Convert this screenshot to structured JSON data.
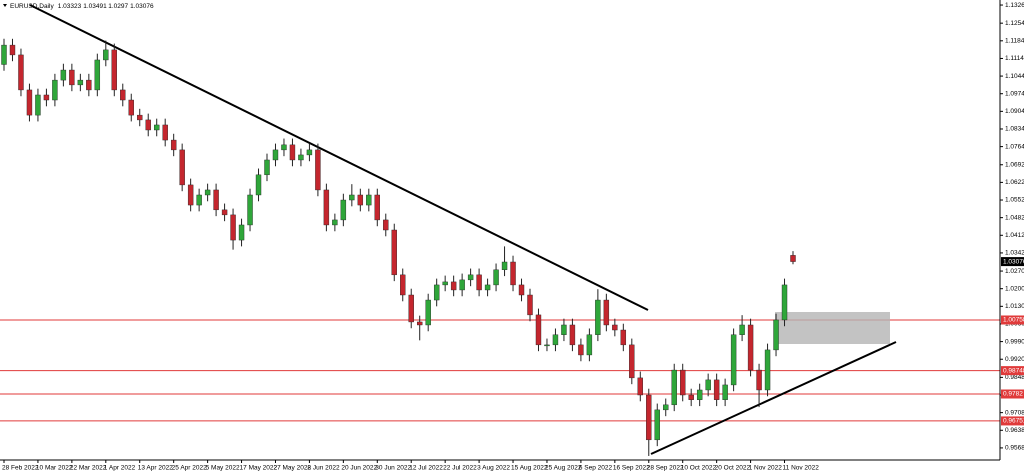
{
  "chart_data": {
    "type": "candlestick",
    "title": "EURUSD,Daily",
    "up_color": "#2fa63a",
    "down_color": "#c4262e",
    "wick_color": "#222222",
    "level_color": "#e03a3a",
    "ylim": [
      0.952,
      1.1346
    ],
    "yticks": [
      {
        "value": 1.1326,
        "label": "1.13260"
      },
      {
        "value": 1.1254,
        "label": "1.12540"
      },
      {
        "value": 1.1184,
        "label": "1.11840"
      },
      {
        "value": 1.1114,
        "label": "1.11140"
      },
      {
        "value": 1.1044,
        "label": "1.10440"
      },
      {
        "value": 1.0974,
        "label": "1.09740"
      },
      {
        "value": 1.0904,
        "label": "1.09040"
      },
      {
        "value": 1.0834,
        "label": "1.08340"
      },
      {
        "value": 1.0764,
        "label": "1.07640"
      },
      {
        "value": 1.0692,
        "label": "1.06920"
      },
      {
        "value": 1.0622,
        "label": "1.06220"
      },
      {
        "value": 1.0552,
        "label": "1.05520"
      },
      {
        "value": 1.0482,
        "label": "1.04820"
      },
      {
        "value": 1.0412,
        "label": "1.04120"
      },
      {
        "value": 1.0342,
        "label": "1.03420"
      },
      {
        "value": 1.027,
        "label": "1.02700"
      },
      {
        "value": 1.02,
        "label": "1.02000"
      },
      {
        "value": 1.013,
        "label": "1.01300"
      },
      {
        "value": 1.006,
        "label": "1.00600"
      },
      {
        "value": 0.999,
        "label": "0.99900"
      },
      {
        "value": 0.992,
        "label": "0.99200"
      },
      {
        "value": 0.9848,
        "label": "0.98480"
      },
      {
        "value": 0.9778,
        "label": "0.97780"
      },
      {
        "value": 0.9708,
        "label": "0.97080"
      },
      {
        "value": 0.9638,
        "label": "0.96380"
      },
      {
        "value": 0.9568,
        "label": "0.95680"
      }
    ],
    "levels": [
      {
        "value": 1.00758
      },
      {
        "value": 0.98748
      },
      {
        "value": 0.9782
      },
      {
        "value": 0.96751
      }
    ],
    "categories": [
      "28 Feb 2022",
      null,
      null,
      null,
      "10 Mar 2022",
      null,
      null,
      null,
      "22 Mar 2022",
      null,
      null,
      null,
      "1 Apr 2022",
      null,
      null,
      null,
      "13 Apr 2022",
      null,
      null,
      null,
      "25 Apr 2022",
      null,
      null,
      null,
      "5 May 2022",
      null,
      null,
      null,
      "17 May 2022",
      null,
      null,
      null,
      "27 May 2022",
      null,
      null,
      null,
      "8 Jun 2022",
      null,
      null,
      null,
      "20 Jun 2022",
      null,
      null,
      null,
      "30 Jun 2022",
      null,
      null,
      null,
      "12 Jul 2022",
      null,
      null,
      null,
      "22 Jul 2022",
      null,
      null,
      null,
      "3 Aug 2022",
      null,
      null,
      null,
      "15 Aug 2022",
      null,
      null,
      null,
      "25 Aug 2022",
      null,
      null,
      null,
      "6 Sep 2022",
      null,
      null,
      null,
      "16 Sep 2022",
      null,
      null,
      null,
      "28 Sep 2022",
      null,
      null,
      null,
      "10 Oct 2022",
      null,
      null,
      null,
      "20 Oct 2022",
      null,
      null,
      null,
      "1 Nov 2022",
      null,
      null,
      null,
      "11 Nov 2022",
      null
    ],
    "open": [
      1.109,
      1.1167,
      1.1128,
      1.0989,
      1.0889,
      1.0969,
      1.0949,
      1.1028,
      1.1068,
      1.1009,
      1.1028,
      1.0989,
      1.1108,
      1.1148,
      1.0989,
      1.0949,
      1.0889,
      1.087,
      1.083,
      1.085,
      1.079,
      1.0751,
      1.0612,
      1.0532,
      1.0572,
      1.0592,
      1.0513,
      1.0493,
      1.0393,
      1.0453,
      1.0572,
      1.0652,
      1.0711,
      1.0751,
      1.0771,
      1.0711,
      1.0731,
      1.0751,
      1.0592,
      1.0453,
      1.0473,
      1.0552,
      1.0572,
      1.0532,
      1.0572,
      1.0473,
      1.0433,
      1.0255,
      1.0175,
      1.0068,
      1.0056,
      1.0155,
      1.0215,
      1.0227,
      1.0195,
      1.0235,
      1.0255,
      1.0195,
      1.0215,
      1.0275,
      1.0306,
      1.0215,
      1.0175,
      1.0096,
      0.9977,
      0.9977,
      1.0017,
      1.0056,
      0.9977,
      0.9937,
      1.0017,
      1.0155,
      1.0056,
      1.0036,
      0.9977,
      0.9846,
      0.9778,
      0.96,
      0.9719,
      0.9739,
      0.9877,
      0.9778,
      0.9759,
      0.9798,
      0.9838,
      0.9759,
      0.9818,
      1.0017,
      1.0056,
      0.9877,
      0.9798,
      0.9957,
      1.0076,
      1.03323
    ],
    "high": [
      1.1192,
      1.1192,
      1.1153,
      1.1014,
      1.0994,
      1.0994,
      1.1053,
      1.1093,
      1.1093,
      1.1053,
      1.1053,
      1.1133,
      1.1185,
      1.1173,
      1.1014,
      1.0974,
      1.0914,
      1.0895,
      1.0875,
      1.0875,
      1.0815,
      1.0776,
      1.0637,
      1.0597,
      1.0617,
      1.0617,
      1.0538,
      1.0518,
      1.0478,
      1.0597,
      1.0677,
      1.0736,
      1.0776,
      1.0796,
      1.0796,
      1.0756,
      1.0776,
      1.0776,
      1.0617,
      1.0498,
      1.0577,
      1.0615,
      1.0597,
      1.0597,
      1.0597,
      1.0498,
      1.0458,
      1.028,
      1.02,
      1.0093,
      1.018,
      1.024,
      1.0252,
      1.0252,
      1.026,
      1.028,
      1.028,
      1.024,
      1.03,
      1.0368,
      1.0331,
      1.024,
      1.02,
      1.0121,
      1.0002,
      1.0042,
      1.0081,
      1.0081,
      1.0002,
      1.0042,
      1.0198,
      1.018,
      1.0081,
      1.0061,
      1.0002,
      0.9871,
      0.9803,
      0.9744,
      0.9764,
      0.9902,
      0.9902,
      0.9803,
      0.9823,
      0.9863,
      0.9863,
      0.9843,
      1.0042,
      1.0095,
      1.0081,
      0.9902,
      0.9982,
      1.0101,
      1.024,
      1.03491
    ],
    "low": [
      1.1065,
      1.1103,
      1.0964,
      1.0864,
      1.0864,
      1.0924,
      1.0924,
      1.1003,
      1.0984,
      1.0984,
      1.0964,
      1.0964,
      1.1083,
      1.0964,
      1.0924,
      1.0864,
      1.0845,
      1.0805,
      1.0805,
      1.0765,
      1.0726,
      1.0587,
      1.0507,
      1.0507,
      1.0547,
      1.0488,
      1.0468,
      1.0355,
      1.0368,
      1.0428,
      1.0547,
      1.0627,
      1.0686,
      1.0726,
      1.0686,
      1.0686,
      1.0706,
      1.0567,
      1.0428,
      1.0428,
      1.0448,
      1.0527,
      1.0507,
      1.0507,
      1.0448,
      1.0408,
      1.023,
      1.015,
      1.0043,
      0.9995,
      1.0031,
      1.013,
      1.019,
      1.017,
      1.017,
      1.021,
      1.017,
      1.017,
      1.019,
      1.025,
      1.019,
      1.015,
      1.0071,
      0.9952,
      0.9952,
      0.9952,
      0.9992,
      0.9952,
      0.9912,
      0.9912,
      0.9992,
      1.0031,
      1.0011,
      0.9952,
      0.9821,
      0.9753,
      0.9536,
      0.9575,
      0.9694,
      0.9714,
      0.9753,
      0.9734,
      0.9734,
      0.9773,
      0.9734,
      0.9734,
      0.9793,
      0.9992,
      0.9852,
      0.973,
      0.9773,
      0.9932,
      1.0051,
      1.0297
    ],
    "close": [
      1.1167,
      1.1128,
      1.0989,
      1.0889,
      1.0969,
      1.0949,
      1.1028,
      1.1068,
      1.1009,
      1.1028,
      1.0989,
      1.1108,
      1.1148,
      1.0989,
      1.0949,
      1.0889,
      1.087,
      1.083,
      1.085,
      1.079,
      1.0751,
      1.0612,
      1.0532,
      1.0572,
      1.0592,
      1.0513,
      1.0493,
      1.0393,
      1.0453,
      1.0572,
      1.0652,
      1.0711,
      1.0751,
      1.0771,
      1.0711,
      1.0731,
      1.0751,
      1.0592,
      1.0453,
      1.0473,
      1.0552,
      1.0572,
      1.0532,
      1.0572,
      1.0473,
      1.0433,
      1.0255,
      1.0175,
      1.0068,
      1.0056,
      1.0155,
      1.0215,
      1.0227,
      1.0195,
      1.0235,
      1.0255,
      1.0195,
      1.0215,
      1.0275,
      1.0306,
      1.0215,
      1.0175,
      1.0096,
      0.9977,
      0.9977,
      1.0017,
      1.0056,
      0.9977,
      0.9937,
      1.0017,
      1.0155,
      1.0056,
      1.0036,
      0.9977,
      0.9846,
      0.9778,
      0.96,
      0.9719,
      0.9739,
      0.9877,
      0.9778,
      0.9759,
      0.9798,
      0.9838,
      0.9759,
      0.9818,
      1.0017,
      1.0056,
      0.9877,
      0.9798,
      0.9957,
      1.0076,
      1.0215,
      1.03076
    ]
  }
}
